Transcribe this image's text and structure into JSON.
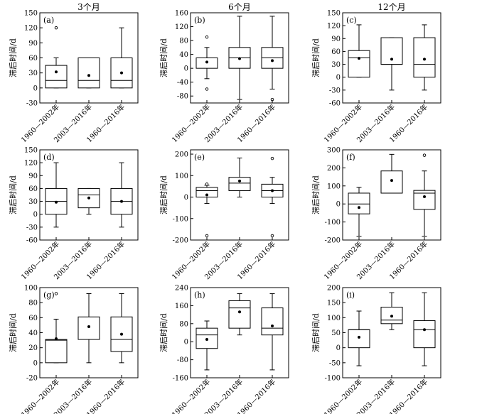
{
  "column_titles": [
    "3个月",
    "6个月",
    "12个月"
  ],
  "chart_data": [
    {
      "type": "box",
      "label": "(a)",
      "ylabel": "滞后时间/d",
      "ylim": [
        -30,
        150
      ],
      "yticks": [
        -30,
        0,
        30,
        60,
        90,
        120,
        150
      ],
      "categories": [
        "1960—2002年",
        "2003—2016年",
        "1960—2016年"
      ],
      "boxes": [
        {
          "whislo": 0,
          "q1": 0,
          "med": 15,
          "q3": 45,
          "whishi": 60,
          "mean": 32,
          "fliers": [
            120
          ]
        },
        {
          "whislo": 0,
          "q1": 0,
          "med": 15,
          "q3": 60,
          "whishi": 60,
          "mean": 25,
          "fliers": []
        },
        {
          "whislo": 0,
          "q1": 0,
          "med": 15,
          "q3": 60,
          "whishi": 120,
          "mean": 30,
          "fliers": []
        }
      ]
    },
    {
      "type": "box",
      "label": "(b)",
      "ylabel": "滞后时间/d",
      "ylim": [
        -100,
        160
      ],
      "yticks": [
        -80,
        -40,
        0,
        40,
        80,
        120,
        160
      ],
      "categories": [
        "1960—2002年",
        "2003—2016年",
        "1960—2016年"
      ],
      "boxes": [
        {
          "whislo": -30,
          "q1": 0,
          "med": 30,
          "q3": 30,
          "whishi": 60,
          "mean": 18,
          "fliers": [
            -60,
            90
          ]
        },
        {
          "whislo": -90,
          "q1": 0,
          "med": 30,
          "q3": 60,
          "whishi": 150,
          "mean": 28,
          "fliers": []
        },
        {
          "whislo": -60,
          "q1": 0,
          "med": 30,
          "q3": 60,
          "whishi": 150,
          "mean": 22,
          "fliers": [
            -90
          ]
        }
      ]
    },
    {
      "type": "box",
      "label": "(c)",
      "ylabel": "滞后时间/d",
      "ylim": [
        -60,
        150
      ],
      "yticks": [
        -60,
        -30,
        0,
        30,
        60,
        90,
        120,
        150
      ],
      "categories": [
        "1960—2002年",
        "2003—2016年",
        "1960—2016年"
      ],
      "boxes": [
        {
          "whislo": 0,
          "q1": 0,
          "med": 45,
          "q3": 62,
          "whishi": 122,
          "mean": 44,
          "fliers": []
        },
        {
          "whislo": -30,
          "q1": 30,
          "med": 30,
          "q3": 92,
          "whishi": 92,
          "mean": 42,
          "fliers": []
        },
        {
          "whislo": -30,
          "q1": 0,
          "med": 30,
          "q3": 92,
          "whishi": 122,
          "mean": 42,
          "fliers": []
        }
      ]
    },
    {
      "type": "box",
      "label": "(d)",
      "ylabel": "滞后时间/d",
      "ylim": [
        -60,
        150
      ],
      "yticks": [
        -60,
        -30,
        0,
        30,
        60,
        90,
        120,
        150
      ],
      "categories": [
        "1960—2002年",
        "2003—2016年",
        "1960—2016年"
      ],
      "boxes": [
        {
          "whislo": -30,
          "q1": 0,
          "med": 30,
          "q3": 60,
          "whishi": 120,
          "mean": 28,
          "fliers": []
        },
        {
          "whislo": 0,
          "q1": 15,
          "med": 45,
          "q3": 60,
          "whishi": 60,
          "mean": 38,
          "fliers": []
        },
        {
          "whislo": -30,
          "q1": 0,
          "med": 30,
          "q3": 60,
          "whishi": 120,
          "mean": 30,
          "fliers": []
        }
      ]
    },
    {
      "type": "box",
      "label": "(e)",
      "ylabel": "滞后时间/d",
      "ylim": [
        -200,
        220
      ],
      "yticks": [
        -200,
        -100,
        0,
        100,
        200
      ],
      "categories": [
        "1960—2002年",
        "2003—2016年",
        "1960—2016年"
      ],
      "boxes": [
        {
          "whislo": -30,
          "q1": 0,
          "med": 30,
          "q3": 45,
          "whishi": 55,
          "mean": 10,
          "fliers": [
            -180,
            60
          ]
        },
        {
          "whislo": 0,
          "q1": 30,
          "med": 65,
          "q3": 92,
          "whishi": 182,
          "mean": 75,
          "fliers": []
        },
        {
          "whislo": -30,
          "q1": 0,
          "med": 30,
          "q3": 60,
          "whishi": 92,
          "mean": 30,
          "fliers": [
            -180,
            180
          ]
        }
      ]
    },
    {
      "type": "box",
      "label": "(f)",
      "ylabel": "滞后时间/d",
      "ylim": [
        -200,
        300
      ],
      "yticks": [
        -200,
        -100,
        0,
        100,
        200,
        300
      ],
      "categories": [
        "1960—2002年",
        "2003—2016年",
        "1960—2016年"
      ],
      "boxes": [
        {
          "whislo": -180,
          "q1": -55,
          "med": 0,
          "q3": 60,
          "whishi": 92,
          "mean": -20,
          "fliers": []
        },
        {
          "whislo": 60,
          "q1": 60,
          "med": 60,
          "q3": 183,
          "whishi": 275,
          "mean": 130,
          "fliers": []
        },
        {
          "whislo": -180,
          "q1": -30,
          "med": 60,
          "q3": 75,
          "whishi": 183,
          "mean": 40,
          "fliers": [
            270
          ]
        }
      ]
    },
    {
      "type": "box",
      "label": "(g)",
      "ylabel": "滞后时间/d",
      "ylim": [
        -20,
        100
      ],
      "yticks": [
        -20,
        0,
        20,
        40,
        60,
        80,
        100
      ],
      "categories": [
        "1960—2002年",
        "2003—2016年",
        "1960—2016年"
      ],
      "boxes": [
        {
          "whislo": 0,
          "q1": 0,
          "med": 30,
          "q3": 31,
          "whishi": 58,
          "mean": 32,
          "fliers": [
            92
          ]
        },
        {
          "whislo": 0,
          "q1": 31,
          "med": 31,
          "q3": 61,
          "whishi": 92,
          "mean": 48,
          "fliers": []
        },
        {
          "whislo": 0,
          "q1": 15,
          "med": 31,
          "q3": 61,
          "whishi": 92,
          "mean": 38,
          "fliers": []
        }
      ]
    },
    {
      "type": "box",
      "label": "(h)",
      "ylabel": "滞后时间/d",
      "ylim": [
        -160,
        240
      ],
      "yticks": [
        -160,
        -80,
        0,
        80,
        160,
        240
      ],
      "categories": [
        "1960—2002年",
        "2003—2016年",
        "1960—2016年"
      ],
      "boxes": [
        {
          "whislo": -125,
          "q1": -30,
          "med": 30,
          "q3": 60,
          "whishi": 92,
          "mean": 10,
          "fliers": []
        },
        {
          "whislo": 30,
          "q1": 60,
          "med": 150,
          "q3": 182,
          "whishi": 213,
          "mean": 132,
          "fliers": []
        },
        {
          "whislo": -125,
          "q1": 30,
          "med": 60,
          "q3": 150,
          "whishi": 213,
          "mean": 70,
          "fliers": []
        }
      ]
    },
    {
      "type": "box",
      "label": "(i)",
      "ylabel": "滞后时间/d",
      "ylim": [
        -100,
        200
      ],
      "yticks": [
        -100,
        -50,
        0,
        50,
        100,
        150,
        200
      ],
      "categories": [
        "1960—2002年",
        "2003—2016年",
        "1960—2016年"
      ],
      "boxes": [
        {
          "whislo": -60,
          "q1": 0,
          "med": 60,
          "q3": 60,
          "whishi": 122,
          "mean": 35,
          "fliers": []
        },
        {
          "whislo": 60,
          "q1": 80,
          "med": 92,
          "q3": 135,
          "whishi": 183,
          "mean": 105,
          "fliers": []
        },
        {
          "whislo": -60,
          "q1": 0,
          "med": 60,
          "q3": 90,
          "whishi": 183,
          "mean": 60,
          "fliers": []
        }
      ]
    }
  ]
}
